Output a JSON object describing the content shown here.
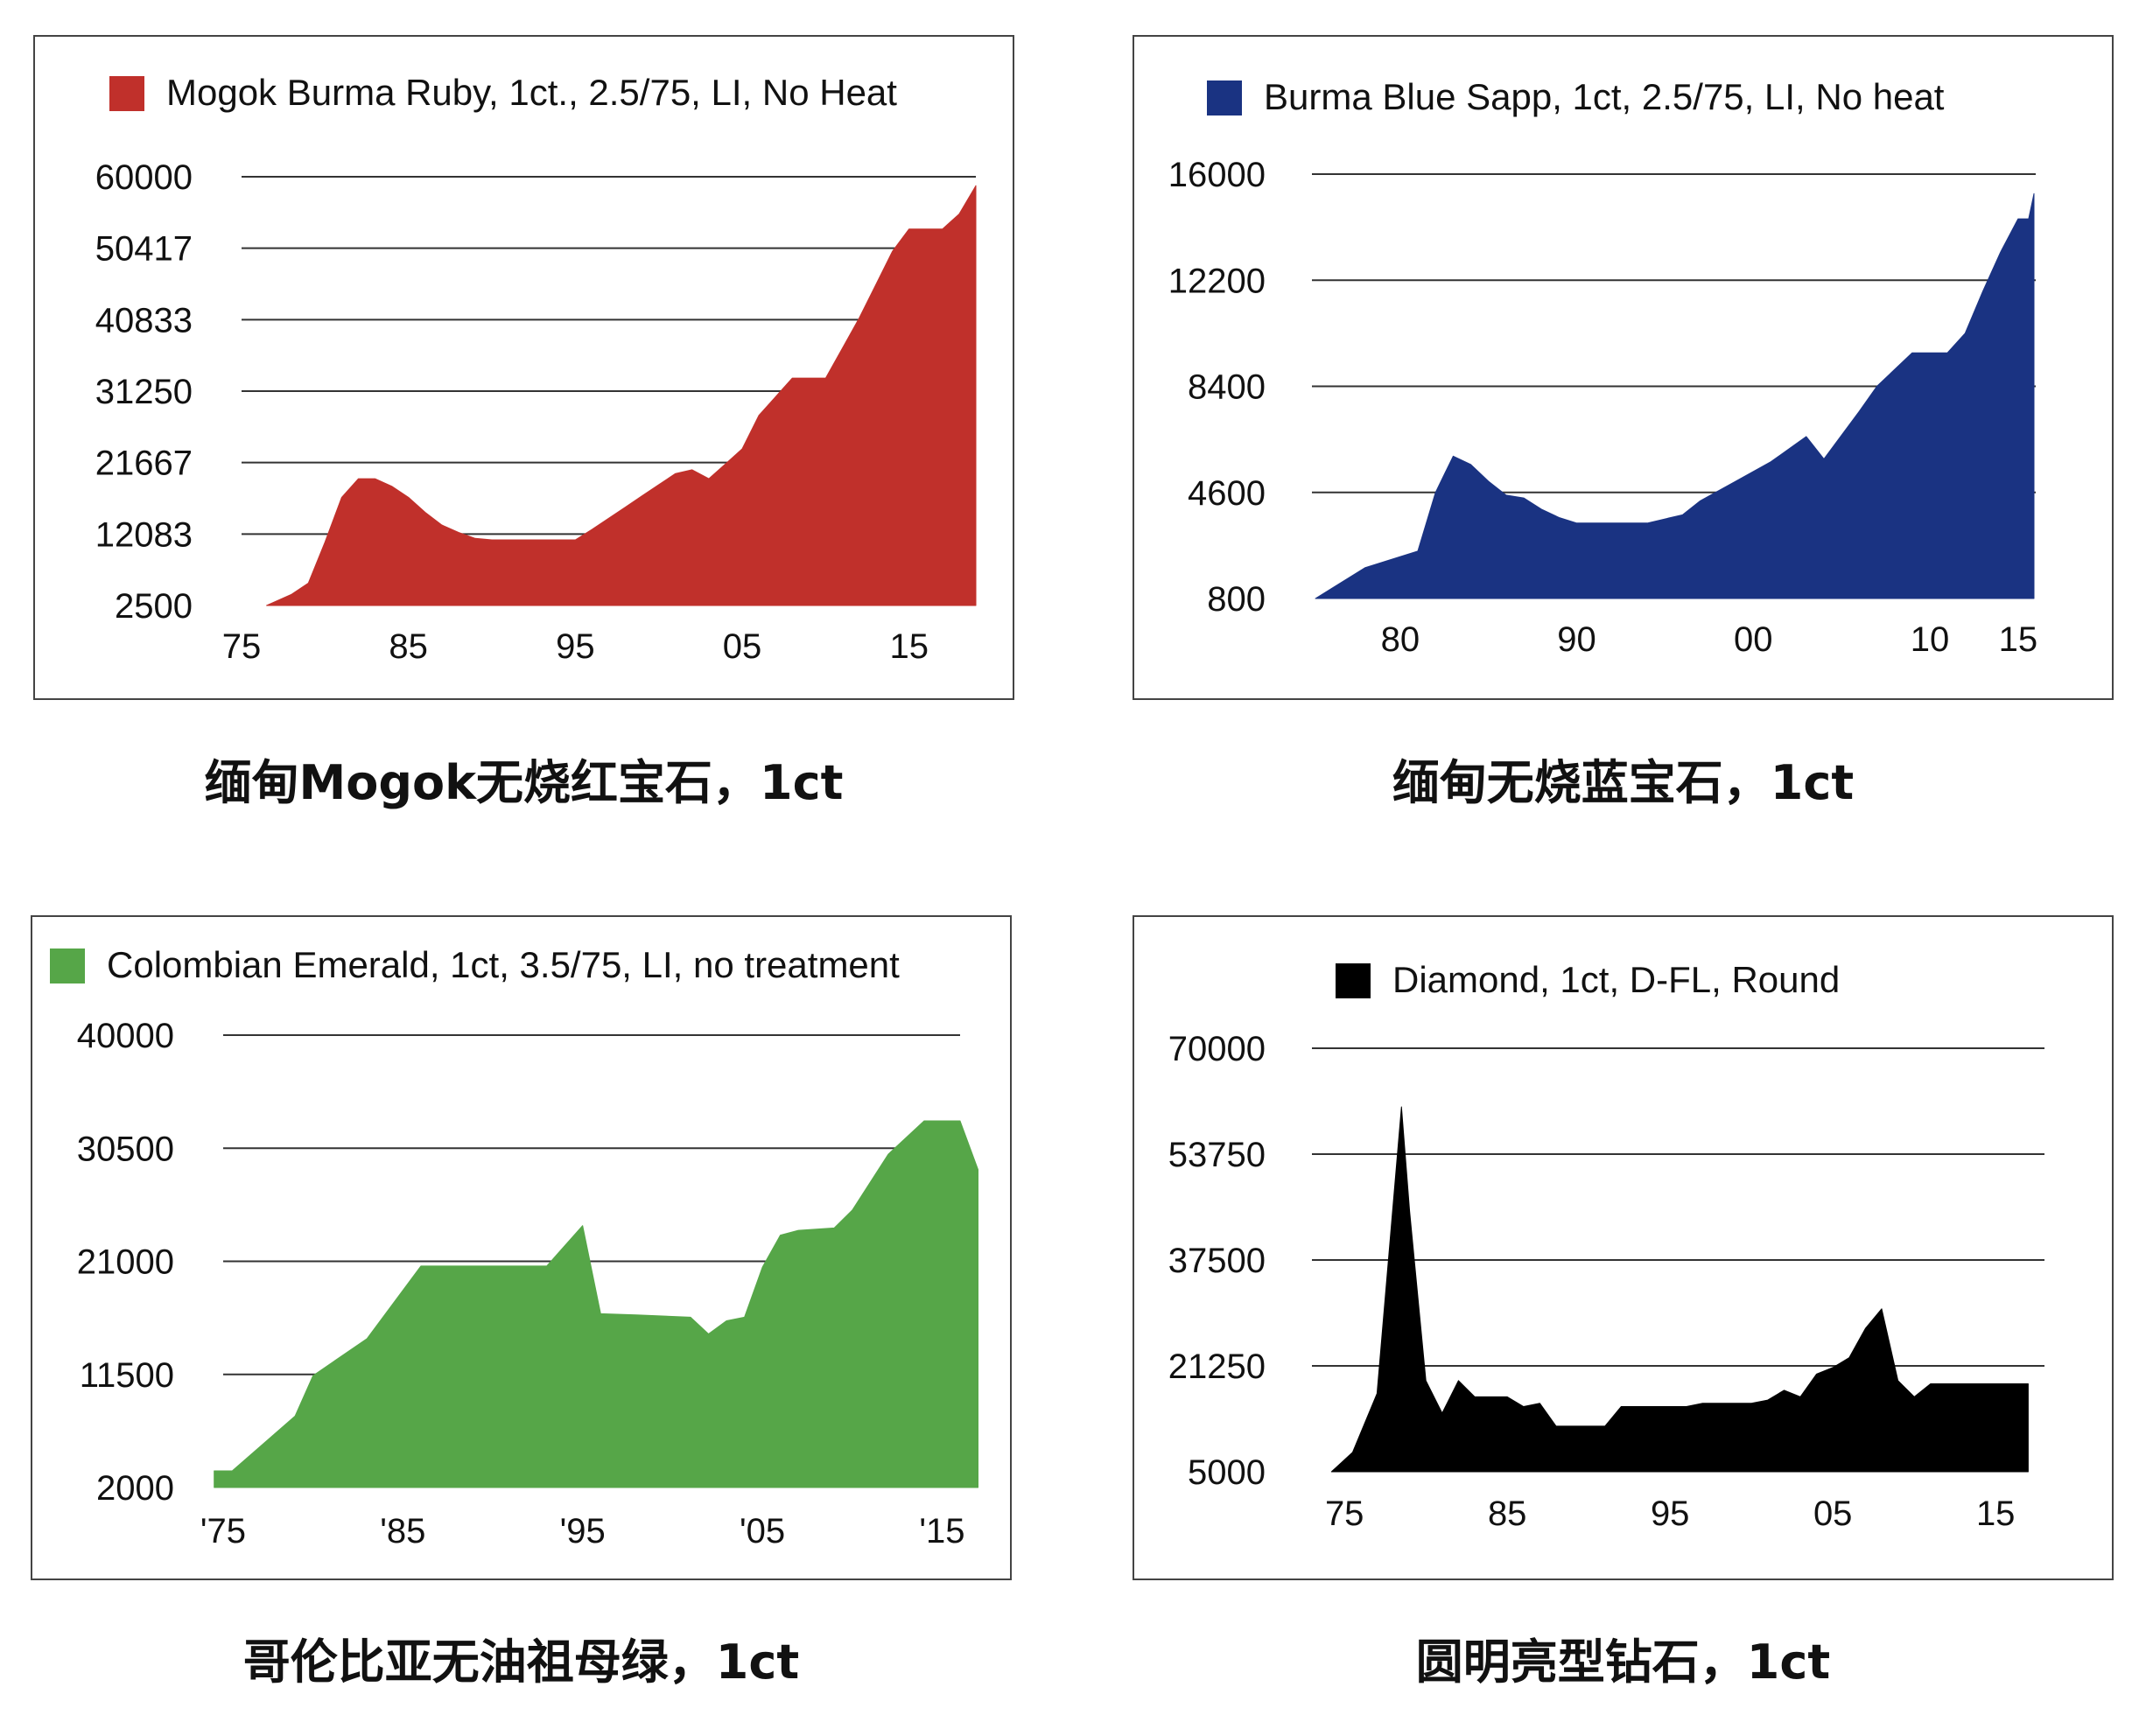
{
  "chart_data": [
    {
      "type": "area",
      "legend": "Mogok Burma Ruby, 1ct., 2.5/75, LI, No Heat",
      "caption": "缅甸Mogok无烧红宝石，1ct",
      "color": "#c0302b",
      "ylim": [
        2500,
        60000
      ],
      "yticks": [
        "60000",
        "50417",
        "40833",
        "31250",
        "21667",
        "12083",
        "2500"
      ],
      "xlim": [
        1975,
        2019
      ],
      "xticks": [
        {
          "v": 1975,
          "label": "75"
        },
        {
          "v": 1985,
          "label": "85"
        },
        {
          "v": 1995,
          "label": "95"
        },
        {
          "v": 2005,
          "label": "05"
        },
        {
          "v": 2015,
          "label": "15"
        }
      ],
      "x": [
        1976.5,
        1978,
        1979,
        1980,
        1981,
        1982,
        1983,
        1984,
        1985,
        1986,
        1987,
        1988,
        1989,
        1990,
        1991,
        1992,
        1993,
        1994,
        1995,
        1996,
        1997,
        1998,
        1999,
        2000,
        2001,
        2002,
        2003,
        2004,
        2005,
        2006,
        2007,
        2008,
        2009,
        2010,
        2011,
        2012,
        2013,
        2014,
        2015,
        2016,
        2017,
        2018,
        2019
      ],
      "values": [
        2500,
        4000,
        5500,
        11000,
        17000,
        19500,
        19500,
        18500,
        17000,
        15000,
        13300,
        12300,
        11500,
        11300,
        11300,
        11300,
        11300,
        11300,
        11300,
        12700,
        14200,
        15700,
        17200,
        18700,
        20200,
        20700,
        19500,
        21500,
        23500,
        28000,
        30500,
        33000,
        33000,
        33000,
        37000,
        41000,
        45500,
        50000,
        53000,
        53000,
        53000,
        55000,
        58800
      ]
    },
    {
      "type": "area",
      "legend": "Burma Blue Sapp, 1ct, 2.5/75, LI, No heat",
      "caption": "缅甸无烧蓝宝石，1ct",
      "color": "#1a3382",
      "ylim": [
        800,
        16000
      ],
      "yticks": [
        "16000",
        "12200",
        "8400",
        "4600",
        "800"
      ],
      "xlim": [
        1975,
        2016
      ],
      "xticks": [
        {
          "v": 1980,
          "label": "80"
        },
        {
          "v": 1990,
          "label": "90"
        },
        {
          "v": 2000,
          "label": "00"
        },
        {
          "v": 2010,
          "label": "10"
        },
        {
          "v": 2015,
          "label": "15"
        }
      ],
      "x": [
        1975.2,
        1978,
        1981,
        1982,
        1983,
        1984,
        1985,
        1986,
        1987,
        1988,
        1989,
        1990,
        1992,
        1994,
        1996,
        1997,
        1999,
        2001,
        2003,
        2004,
        2006,
        2007,
        2009,
        2010,
        2011,
        2012,
        2013,
        2014,
        2015,
        2015.6,
        2015.9
      ],
      "values": [
        800,
        1900,
        2500,
        4600,
        5900,
        5600,
        5000,
        4500,
        4400,
        4000,
        3700,
        3500,
        3500,
        3500,
        3800,
        4300,
        5000,
        5700,
        6600,
        5800,
        7500,
        8400,
        9600,
        9600,
        9600,
        10300,
        11800,
        13200,
        14400,
        14400,
        15300
      ]
    },
    {
      "type": "area",
      "legend": "Colombian Emerald, 1ct, 3.5/75, LI, no treatment",
      "caption": "哥伦比亚无油祖母绿，1ct",
      "color": "#56a648",
      "ylim": [
        2000,
        40000
      ],
      "yticks": [
        "40000",
        "30500",
        "21000",
        "11500",
        "2000"
      ],
      "xlim": [
        1975,
        2016
      ],
      "xticks": [
        {
          "v": 1975,
          "label": "'75"
        },
        {
          "v": 1985,
          "label": "'85"
        },
        {
          "v": 1995,
          "label": "'95"
        },
        {
          "v": 2005,
          "label": "'05"
        },
        {
          "v": 2015,
          "label": "'15"
        }
      ],
      "x": [
        1974.5,
        1975.5,
        1979,
        1980,
        1983,
        1986,
        1988,
        1993,
        1995,
        1996,
        1998,
        2001,
        2002,
        2003,
        2004,
        2005,
        2006,
        2007,
        2009,
        2010,
        2012,
        2014,
        2016,
        2017
      ],
      "values": [
        3400,
        3400,
        8000,
        11400,
        14500,
        20600,
        20600,
        20600,
        24000,
        16600,
        16500,
        16300,
        14900,
        16000,
        16300,
        20500,
        23200,
        23600,
        23800,
        25300,
        30000,
        32800,
        32800,
        28700
      ]
    },
    {
      "type": "area",
      "legend": "Diamond, 1ct, D-FL, Round",
      "caption": "圆明亮型钻石，1ct",
      "color": "#000000",
      "ylim": [
        5000,
        70000
      ],
      "yticks": [
        "70000",
        "53750",
        "37500",
        "21250",
        "5000"
      ],
      "xlim": [
        1973,
        2018
      ],
      "xticks": [
        {
          "v": 1975,
          "label": "75"
        },
        {
          "v": 1985,
          "label": "85"
        },
        {
          "v": 1995,
          "label": "95"
        },
        {
          "v": 2005,
          "label": "05"
        },
        {
          "v": 2015,
          "label": "15"
        }
      ],
      "x": [
        1974.2,
        1975.5,
        1977,
        1978.5,
        1979,
        1980,
        1981,
        1982,
        1983,
        1985,
        1986,
        1987,
        1988,
        1989,
        1990,
        1991,
        1992,
        1993,
        1994,
        1995,
        1996,
        1997,
        1998,
        1999,
        2000,
        2001,
        2002,
        2003,
        2004,
        2005,
        2006,
        2007,
        2008,
        2009,
        2010,
        2011,
        2012,
        2013,
        2014,
        2015,
        2016,
        2017
      ],
      "values": [
        5000,
        8000,
        17000,
        61000,
        45000,
        19000,
        14000,
        19000,
        16500,
        16500,
        15000,
        15500,
        12000,
        12000,
        12000,
        12000,
        15000,
        15000,
        15000,
        15000,
        15000,
        15500,
        15500,
        15500,
        15500,
        16000,
        17500,
        16500,
        20000,
        21000,
        22500,
        27000,
        30000,
        19000,
        16500,
        18500,
        18500,
        18500,
        18500,
        18500,
        18500,
        18500
      ]
    }
  ]
}
